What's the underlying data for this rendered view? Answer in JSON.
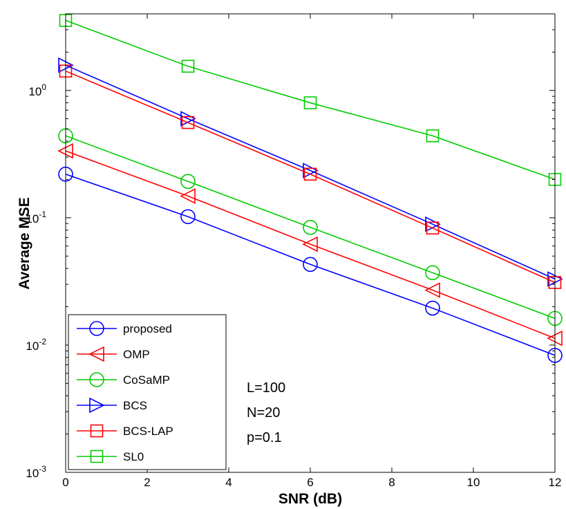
{
  "chart_data": {
    "type": "line",
    "title": "",
    "xlabel": "SNR (dB)",
    "ylabel": "Average MSE",
    "x": [
      0,
      3,
      6,
      9,
      12
    ],
    "xlim": [
      0,
      12
    ],
    "ylim": [
      0.001,
      4
    ],
    "yscale": "log",
    "xticks": [
      "0",
      "2",
      "4",
      "6",
      "8",
      "10",
      "12"
    ],
    "yticks": [
      {
        "base": "10",
        "exp": "-3"
      },
      {
        "base": "10",
        "exp": "-2"
      },
      {
        "base": "10",
        "exp": "-1"
      },
      {
        "base": "10",
        "exp": "0"
      }
    ],
    "grid": false,
    "legend_position": "bottom-left",
    "series": [
      {
        "name": "proposed",
        "color": "#0000ff",
        "marker": "circle",
        "values": [
          0.22,
          0.102,
          0.043,
          0.0195,
          0.0083
        ]
      },
      {
        "name": "OMP",
        "color": "#ff0000",
        "marker": "triangle-left",
        "values": [
          0.335,
          0.148,
          0.062,
          0.027,
          0.0113
        ]
      },
      {
        "name": "CoSaMP",
        "color": "#00cc00",
        "marker": "circle",
        "values": [
          0.44,
          0.193,
          0.084,
          0.037,
          0.0162
        ]
      },
      {
        "name": "BCS",
        "color": "#0000ff",
        "marker": "triangle-right",
        "values": [
          1.58,
          0.6,
          0.235,
          0.089,
          0.033
        ]
      },
      {
        "name": "BCS-LAP",
        "color": "#ff0000",
        "marker": "square",
        "values": [
          1.42,
          0.56,
          0.22,
          0.083,
          0.031
        ]
      },
      {
        "name": "SL0",
        "color": "#00cc00",
        "marker": "square",
        "values": [
          3.55,
          1.55,
          0.8,
          0.44,
          0.2
        ]
      }
    ],
    "annotations": [
      "L=100",
      "N=20",
      "p=0.1"
    ]
  }
}
